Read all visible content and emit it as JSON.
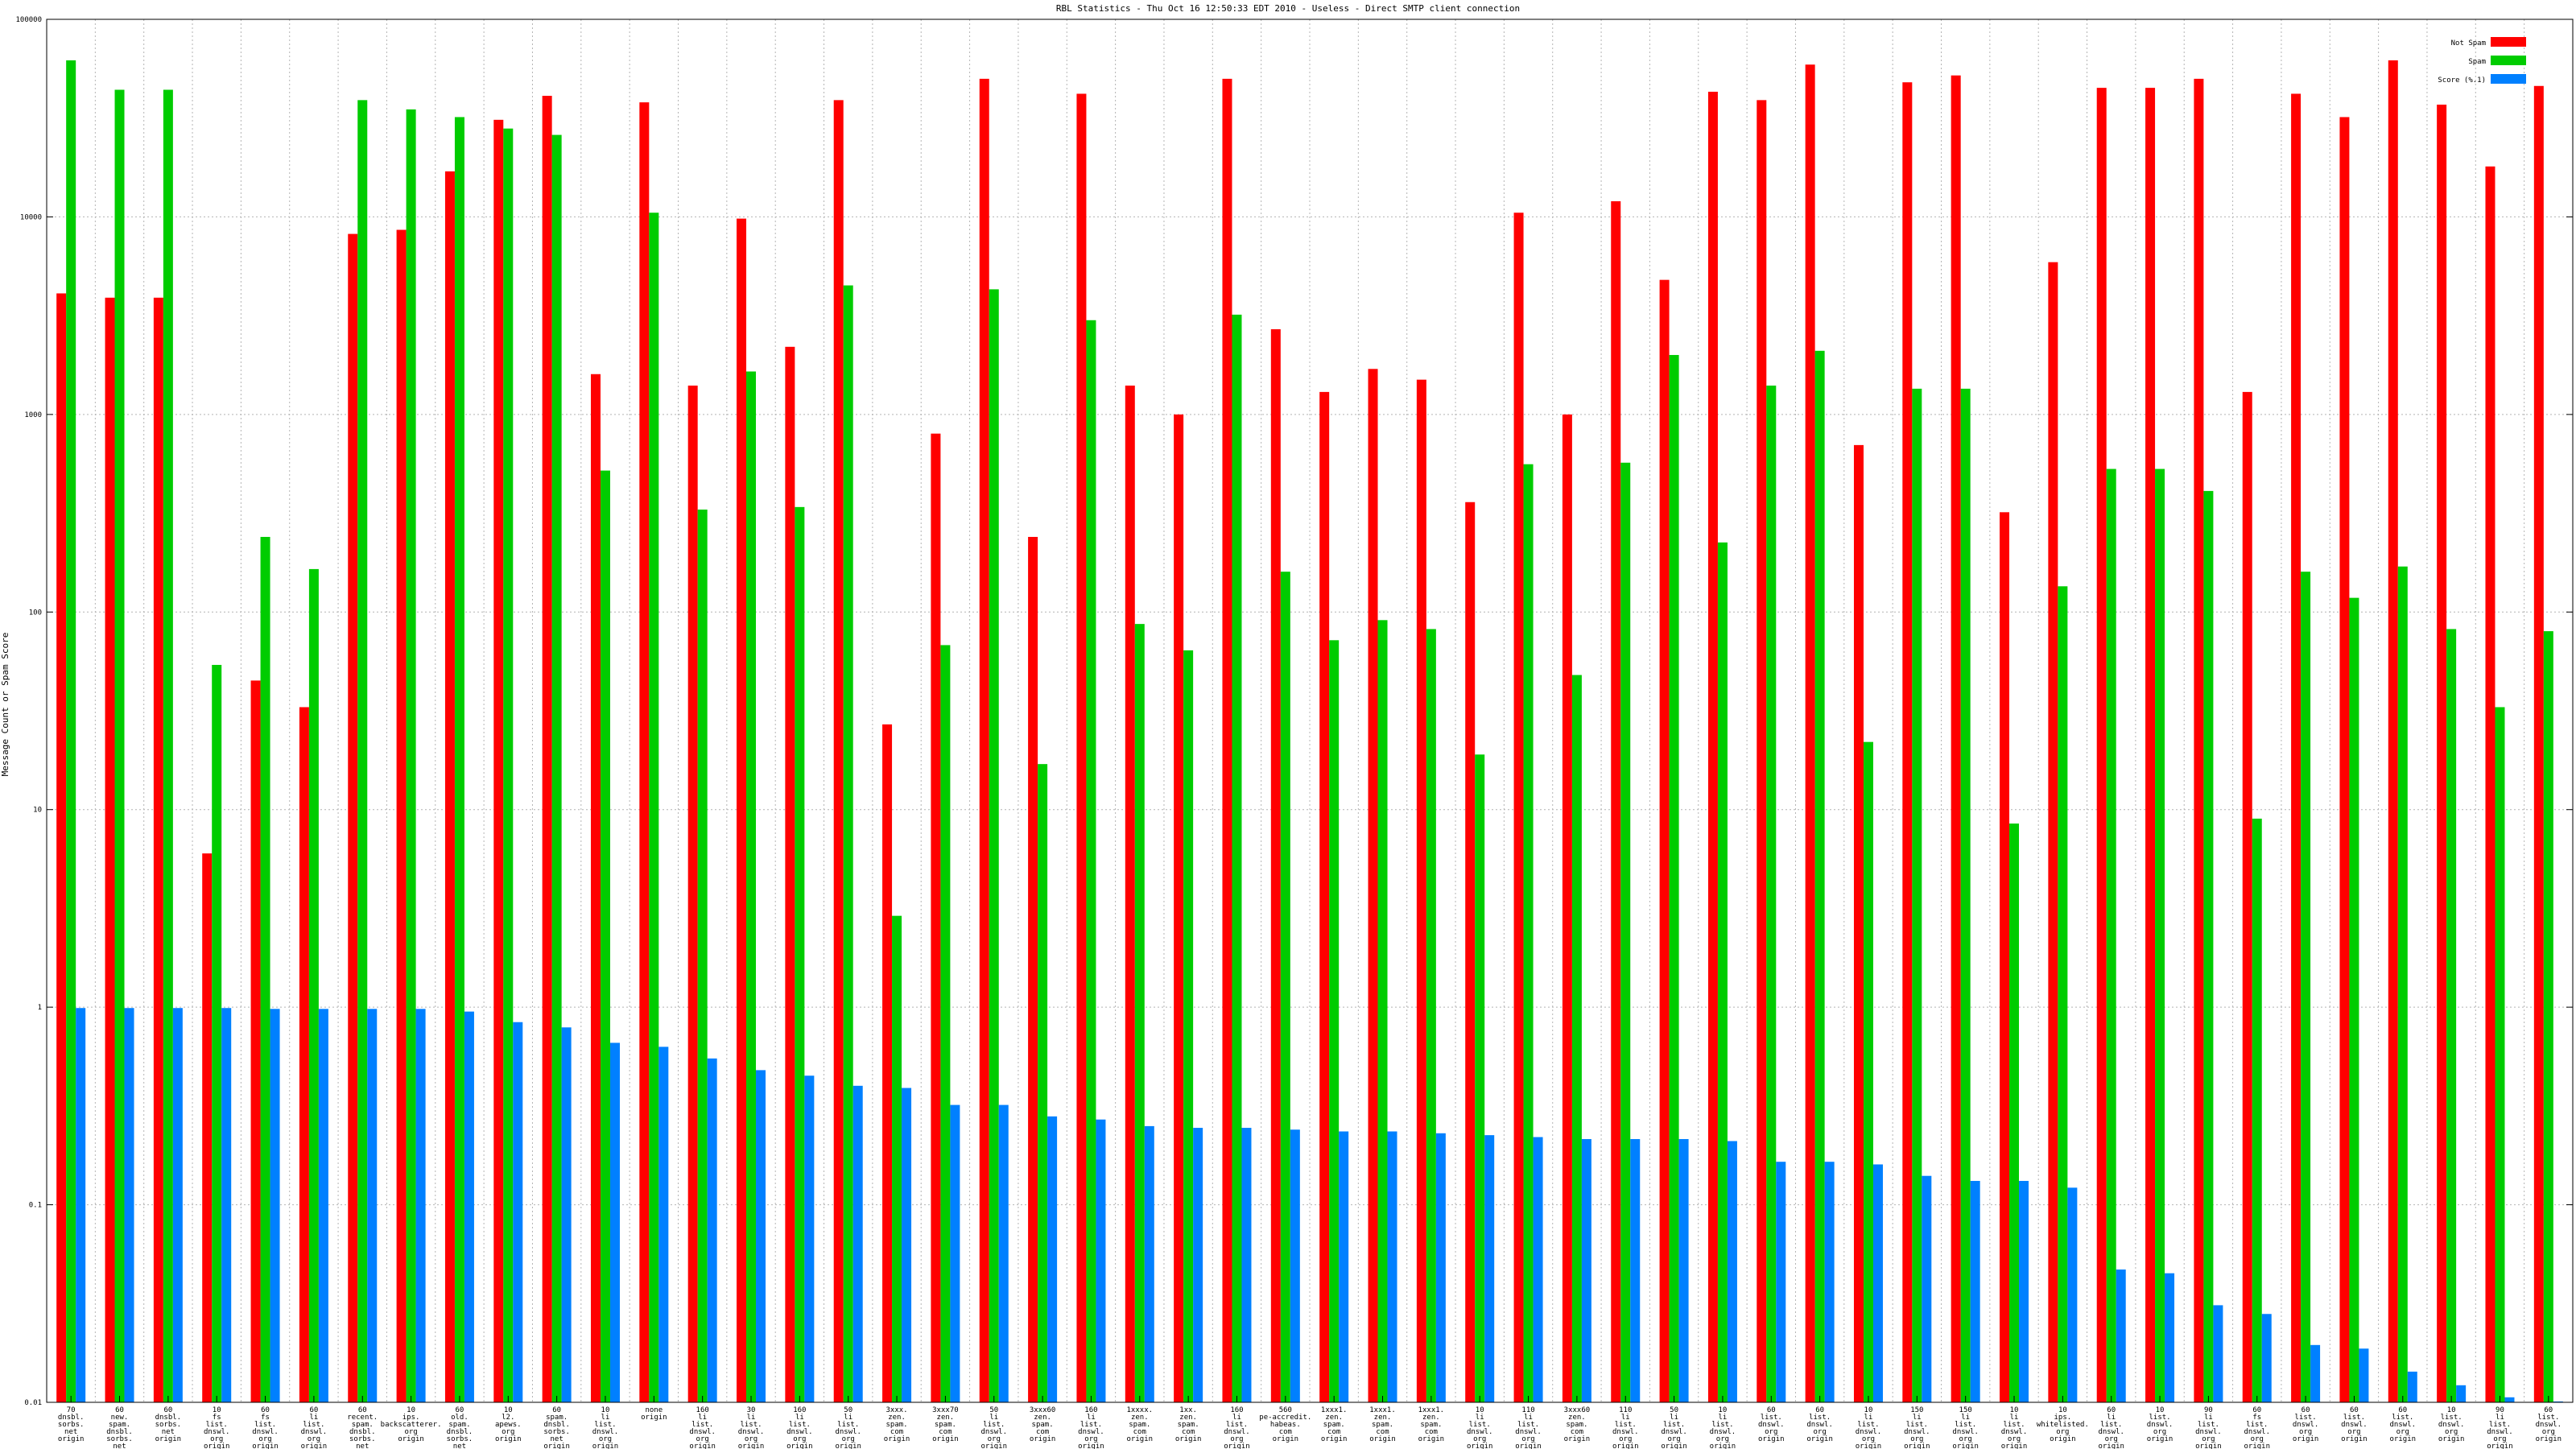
{
  "chart_data": {
    "type": "bar",
    "title": "RBL Statistics - Thu Oct 16 12:50:33 EDT 2010 - Useless - Direct SMTP client connection",
    "xlabel": "",
    "ylabel": "Message Count or Spam Score",
    "yscale": "log",
    "ylim": [
      0.01,
      100000
    ],
    "yticks": [
      {
        "value": 0.01,
        "label": "0.01"
      },
      {
        "value": 0.1,
        "label": "0.1"
      },
      {
        "value": 1,
        "label": "1"
      },
      {
        "value": 10,
        "label": "10"
      },
      {
        "value": 100,
        "label": "100"
      },
      {
        "value": 1000,
        "label": "1000"
      },
      {
        "value": 10000,
        "label": "10000"
      },
      {
        "value": 100000,
        "label": "100000"
      }
    ],
    "grid": true,
    "legend_position": "top-right",
    "categories": [
      [
        "70",
        "dnsbl.",
        "sorbs.",
        "net",
        "origin"
      ],
      [
        "60",
        "new.",
        "spam.",
        "dnsbl.",
        "sorbs.",
        "net",
        "origin"
      ],
      [
        "60",
        "dnsbl.",
        "sorbs.",
        "net",
        "origin"
      ],
      [
        "10",
        "fs",
        "list.",
        "dnswl.",
        "org",
        "origin"
      ],
      [
        "60",
        "fs",
        "list.",
        "dnswl.",
        "org",
        "origin"
      ],
      [
        "60",
        "li",
        "list.",
        "dnswl.",
        "org",
        "origin"
      ],
      [
        "60",
        "recent.",
        "spam.",
        "dnsbl.",
        "sorbs.",
        "net",
        "origin"
      ],
      [
        "10",
        "ips.",
        "backscatterer.",
        "org",
        "origin"
      ],
      [
        "60",
        "old.",
        "spam.",
        "dnsbl.",
        "sorbs.",
        "net",
        "origin"
      ],
      [
        "10",
        "l2.",
        "apews.",
        "org",
        "origin"
      ],
      [
        "60",
        "spam.",
        "dnsbl.",
        "sorbs.",
        "net",
        "origin"
      ],
      [
        "10",
        "li",
        "list.",
        "dnswl.",
        "org",
        "origin"
      ],
      [
        "none",
        "origin"
      ],
      [
        "160",
        "li",
        "list.",
        "dnswl.",
        "org",
        "origin"
      ],
      [
        "30",
        "li",
        "list.",
        "dnswl.",
        "org",
        "origin"
      ],
      [
        "160",
        "li",
        "list.",
        "dnswl.",
        "org",
        "origin"
      ],
      [
        "50",
        "li",
        "list.",
        "dnswl.",
        "org",
        "origin"
      ],
      [
        "3xxx.",
        "zen.",
        "spam.",
        "com",
        "origin"
      ],
      [
        "3xxx70",
        "zen.",
        "spam.",
        "com",
        "origin"
      ],
      [
        "50",
        "li",
        "list.",
        "dnswl.",
        "org",
        "origin"
      ],
      [
        "3xxx60",
        "zen.",
        "spam.",
        "com",
        "origin"
      ],
      [
        "160",
        "li",
        "list.",
        "dnswl.",
        "org",
        "origin"
      ],
      [
        "1xxxx.",
        "zen.",
        "spam.",
        "com",
        "origin"
      ],
      [
        "1xx.",
        "zen.",
        "spam.",
        "com",
        "origin"
      ],
      [
        "160",
        "li",
        "list.",
        "dnswl.",
        "org",
        "origin"
      ],
      [
        "560",
        "pe-accredit.",
        "habeas.",
        "com",
        "origin"
      ],
      [
        "1xxx1.",
        "zen.",
        "spam.",
        "com",
        "origin"
      ],
      [
        "1xxx1.",
        "zen.",
        "spam.",
        "com",
        "origin"
      ],
      [
        "1xxx1.",
        "zen.",
        "spam.",
        "com",
        "origin"
      ],
      [
        "10",
        "li",
        "list.",
        "dnswl.",
        "org",
        "origin"
      ],
      [
        "110",
        "li",
        "list.",
        "dnswl.",
        "org",
        "origin"
      ],
      [
        "3xxx60",
        "zen.",
        "spam.",
        "com",
        "origin"
      ],
      [
        "110",
        "li",
        "list.",
        "dnswl.",
        "org",
        "origin"
      ],
      [
        "50",
        "li",
        "list.",
        "dnswl.",
        "org",
        "origin"
      ],
      [
        "10",
        "li",
        "list.",
        "dnswl.",
        "org",
        "origin"
      ],
      [
        "60",
        "list.",
        "dnswl.",
        "org",
        "origin"
      ],
      [
        "60",
        "list.",
        "dnswl.",
        "org",
        "origin"
      ],
      [
        "10",
        "li",
        "list.",
        "dnswl.",
        "org",
        "origin"
      ],
      [
        "150",
        "li",
        "list.",
        "dnswl.",
        "org",
        "origin"
      ],
      [
        "150",
        "li",
        "list.",
        "dnswl.",
        "org",
        "origin"
      ],
      [
        "10",
        "li",
        "list.",
        "dnswl.",
        "org",
        "origin"
      ],
      [
        "10",
        "ips.",
        "whitelisted.",
        "org",
        "origin"
      ],
      [
        "60",
        "li",
        "list.",
        "dnswl.",
        "org",
        "origin"
      ],
      [
        "10",
        "list.",
        "dnswl.",
        "org",
        "origin"
      ],
      [
        "90",
        "li",
        "list.",
        "dnswl.",
        "org",
        "origin"
      ],
      [
        "60",
        "fs",
        "list.",
        "dnswl.",
        "org",
        "origin"
      ],
      [
        "60",
        "list.",
        "dnswl.",
        "org",
        "origin"
      ],
      [
        "60",
        "list.",
        "dnswl.",
        "org",
        "origin"
      ],
      [
        "60",
        "list.",
        "dnswl.",
        "org",
        "origin"
      ],
      [
        "10",
        "list.",
        "dnswl.",
        "org",
        "origin"
      ],
      [
        "90",
        "li",
        "list.",
        "dnswl.",
        "org",
        "origin"
      ],
      [
        "60",
        "list.",
        "dnswl.",
        "org",
        "origin"
      ]
    ],
    "series": [
      {
        "name": "Not Spam",
        "color": "#ff0000",
        "values": [
          4100,
          3900,
          3900,
          6,
          45,
          33,
          8200,
          8600,
          17000,
          31000,
          41000,
          1600,
          38000,
          1400,
          9800,
          2200,
          39000,
          27,
          800,
          50000,
          240,
          42000,
          1400,
          1000,
          50000,
          2700,
          1300,
          1700,
          1500,
          360,
          10500,
          1000,
          12000,
          4800,
          43000,
          39000,
          59000,
          700,
          48000,
          52000,
          320,
          5900,
          45000,
          45000,
          50000,
          1300,
          42000,
          32000,
          62000,
          37000,
          18000,
          46000
        ]
      },
      {
        "name": "Spam",
        "color": "#00cc00",
        "values": [
          62000,
          44000,
          44000,
          54,
          240,
          165,
          39000,
          35000,
          32000,
          28000,
          26000,
          520,
          10500,
          330,
          1650,
          340,
          4500,
          2.9,
          68,
          4300,
          17,
          3000,
          87,
          64,
          3200,
          160,
          72,
          91,
          82,
          19,
          560,
          48,
          570,
          2000,
          225,
          1400,
          2100,
          22,
          1350,
          1350,
          8.5,
          135,
          530,
          530,
          410,
          9,
          160,
          118,
          170,
          82,
          33,
          80
        ]
      },
      {
        "name": "Score (%.1)",
        "color": "#0080ff",
        "values": [
          0.99,
          0.99,
          0.99,
          0.99,
          0.98,
          0.98,
          0.98,
          0.98,
          0.95,
          0.84,
          0.79,
          0.66,
          0.63,
          0.55,
          0.48,
          0.45,
          0.4,
          0.39,
          0.32,
          0.32,
          0.28,
          0.27,
          0.25,
          0.245,
          0.245,
          0.24,
          0.235,
          0.235,
          0.23,
          0.225,
          0.22,
          0.215,
          0.215,
          0.215,
          0.21,
          0.165,
          0.165,
          0.16,
          0.14,
          0.132,
          0.132,
          0.122,
          0.047,
          0.045,
          0.031,
          0.028,
          0.0195,
          0.0187,
          0.0143,
          0.0122,
          0.0106,
          0.0101
        ]
      }
    ]
  }
}
